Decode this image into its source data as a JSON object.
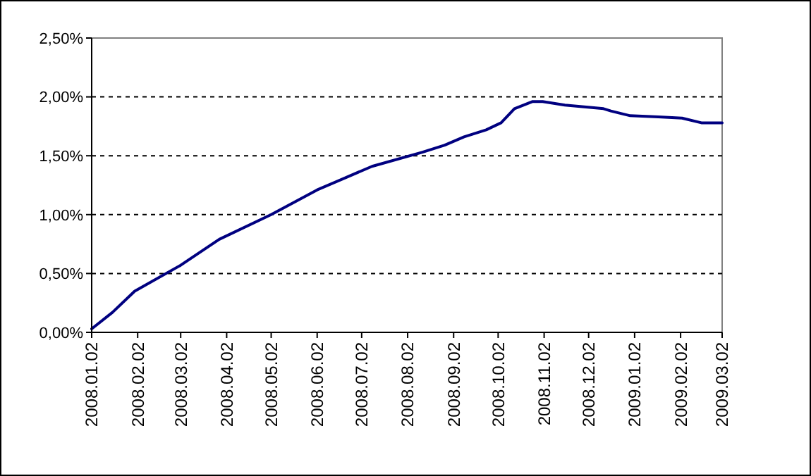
{
  "chart_data": {
    "type": "line",
    "x": [
      "2008-01-02",
      "2008-01-16",
      "2008-01-31",
      "2008-03-02",
      "2008-03-28",
      "2008-05-02",
      "2008-06-02",
      "2008-07-09",
      "2008-08-12",
      "2008-08-27",
      "2008-09-09",
      "2008-09-24",
      "2008-10-04",
      "2008-10-13",
      "2008-10-25",
      "2008-11-01",
      "2008-11-16",
      "2008-12-12",
      "2008-12-17",
      "2008-12-30",
      "2009-01-18",
      "2009-02-03",
      "2009-02-16",
      "2009-03-02"
    ],
    "series": [
      {
        "color": "#000080",
        "values": [
          0.03,
          0.17,
          0.35,
          0.57,
          0.79,
          1.0,
          1.21,
          1.41,
          1.53,
          1.59,
          1.66,
          1.72,
          1.78,
          1.9,
          1.96,
          1.96,
          1.93,
          1.9,
          1.88,
          1.84,
          1.83,
          1.82,
          1.78,
          1.78
        ]
      }
    ],
    "xlim": [
      "2008-01-02",
      "2009-03-02"
    ],
    "xticks": [
      {
        "value": "2008-01-02",
        "label": "2008.01.02"
      },
      {
        "value": "2008-02-02",
        "label": "2008.02.02"
      },
      {
        "value": "2008-03-02",
        "label": "2008.03.02"
      },
      {
        "value": "2008-04-02",
        "label": "2008.04.02"
      },
      {
        "value": "2008-05-02",
        "label": "2008.05.02"
      },
      {
        "value": "2008-06-02",
        "label": "2008.06.02"
      },
      {
        "value": "2008-07-02",
        "label": "2008.07.02"
      },
      {
        "value": "2008-08-02",
        "label": "2008.08.02"
      },
      {
        "value": "2008-09-02",
        "label": "2008.09.02"
      },
      {
        "value": "2008-10-02",
        "label": "2008.10.02"
      },
      {
        "value": "2008-11-02",
        "label": "2008.11.02"
      },
      {
        "value": "2008-12-02",
        "label": "2008.12.02"
      },
      {
        "value": "2009-01-02",
        "label": "2009.01.02"
      },
      {
        "value": "2009-02-02",
        "label": "2009.02.02"
      },
      {
        "value": "2009-03-02",
        "label": "2009.03.02"
      }
    ],
    "ylim": [
      0,
      2.5
    ],
    "yticks": [
      {
        "value": 0,
        "label": "0,00%"
      },
      {
        "value": 0.5,
        "label": "0,50%"
      },
      {
        "value": 1,
        "label": "1,00%"
      },
      {
        "value": 1.5,
        "label": "1,50%"
      },
      {
        "value": 2,
        "label": "2,00%"
      },
      {
        "value": 2.5,
        "label": "2,50%"
      }
    ],
    "grid": "y",
    "line_style": "solid",
    "marker": "none"
  }
}
